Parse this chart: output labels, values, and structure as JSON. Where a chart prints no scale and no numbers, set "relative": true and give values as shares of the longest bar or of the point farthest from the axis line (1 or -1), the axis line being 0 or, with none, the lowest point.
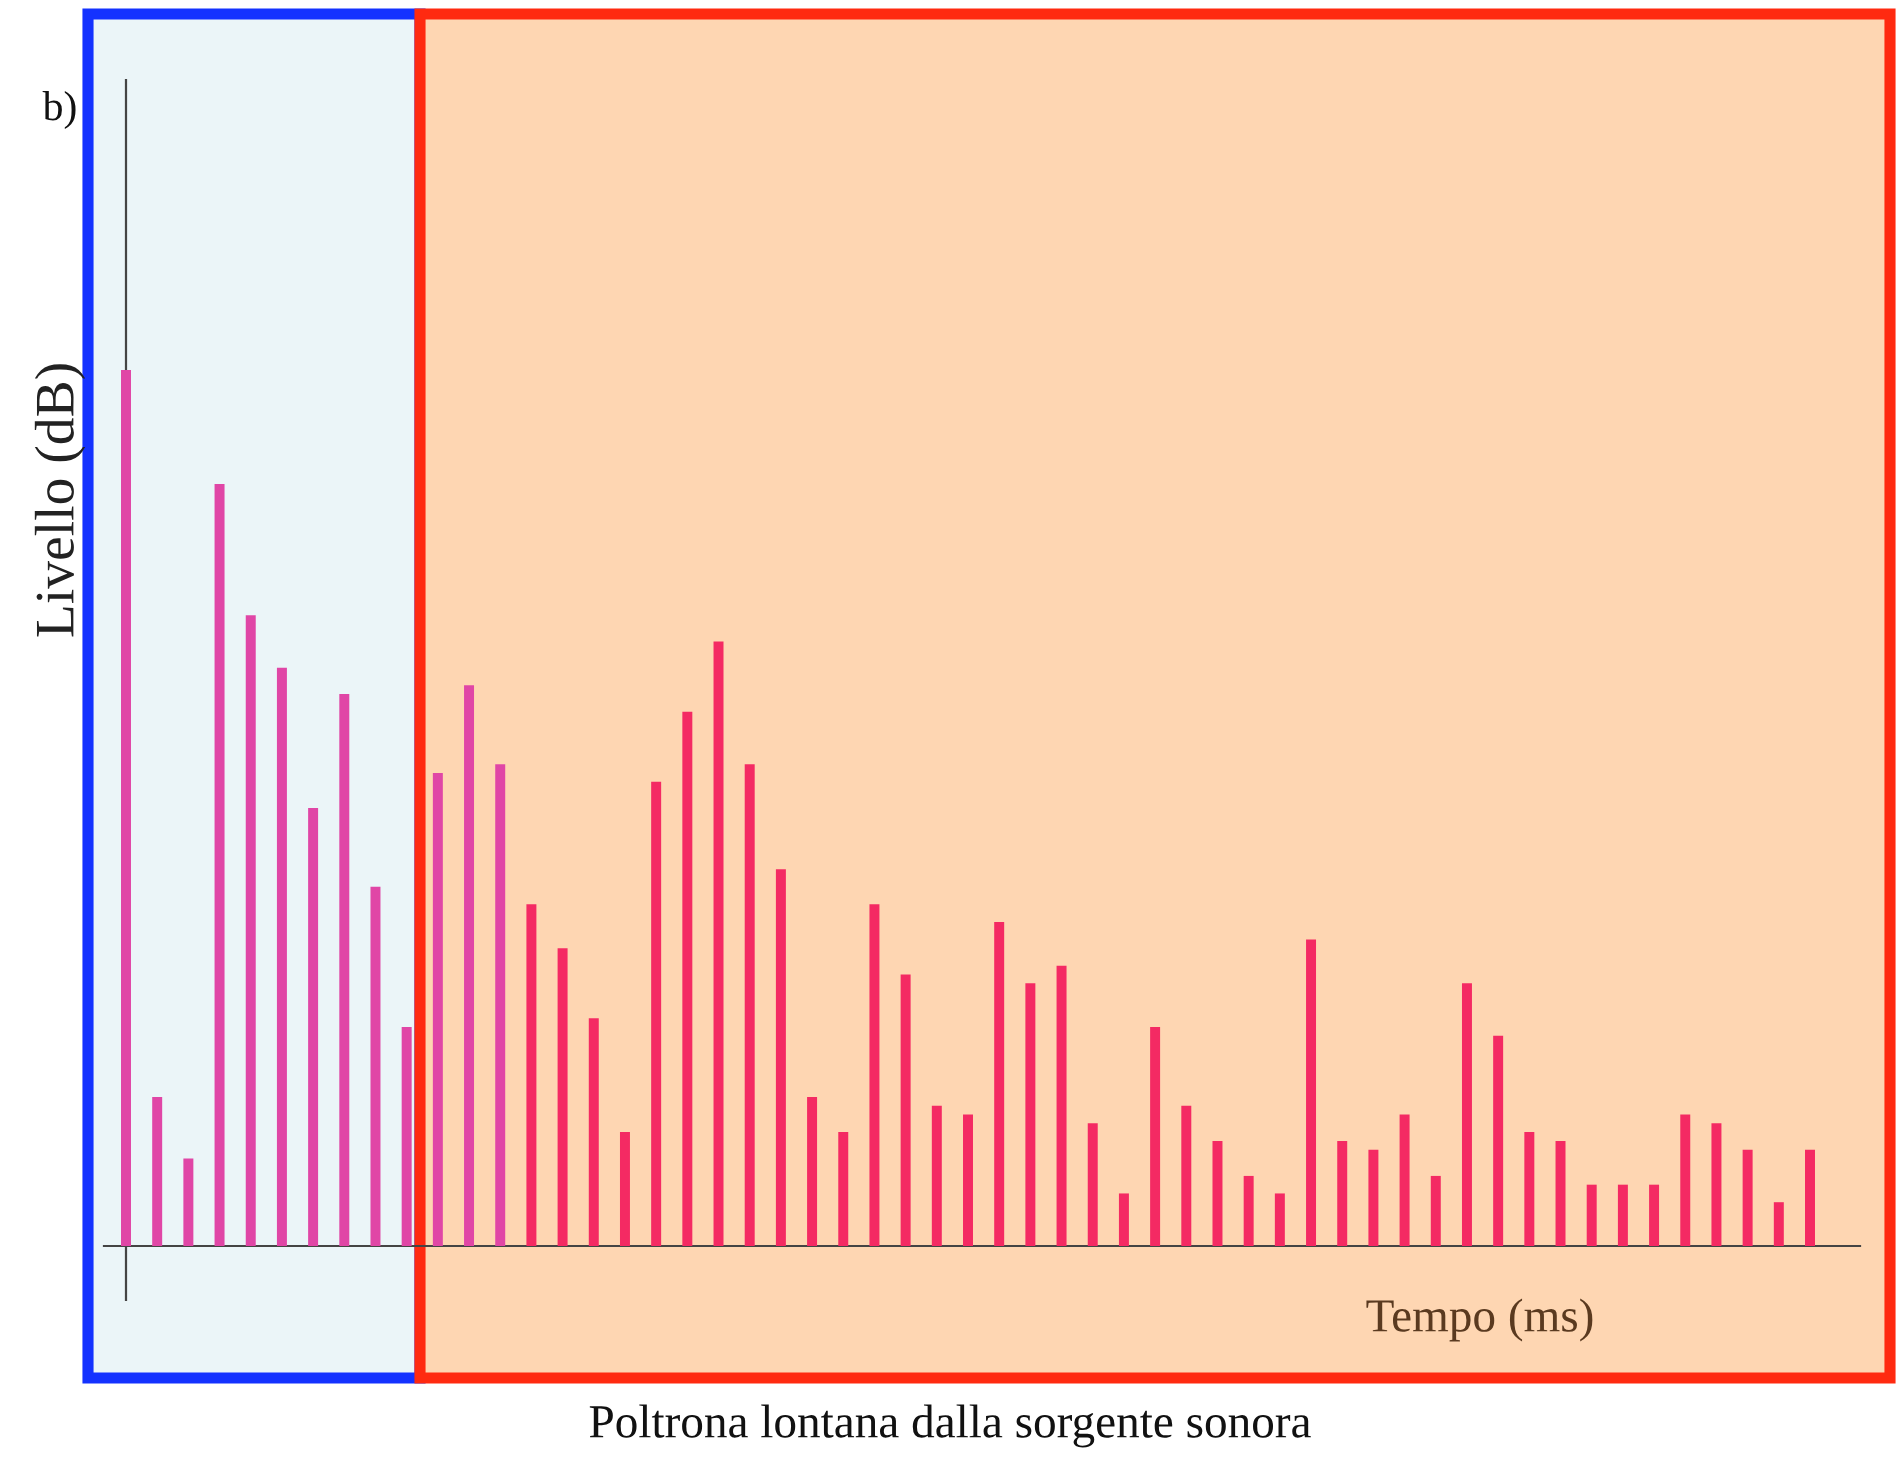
{
  "chart_data": {
    "type": "bar",
    "relative": true,
    "ylabel": "Livello (dB)",
    "xlabel": "Tempo (ms)",
    "annotations": [
      "b)",
      "Poltrona lontana dalla sorgente sonora"
    ],
    "categories": [
      null,
      null,
      null,
      null,
      null,
      null,
      null,
      null,
      null,
      null,
      null,
      null,
      null,
      null,
      null,
      null,
      null,
      null,
      null,
      null,
      null,
      null,
      null,
      null,
      null,
      null,
      null,
      null,
      null,
      null,
      null,
      null,
      null,
      null,
      null,
      null,
      null,
      null,
      null,
      null,
      null,
      null,
      null,
      null,
      null,
      null,
      null,
      null,
      null,
      null,
      null,
      null,
      null,
      null,
      null
    ],
    "values": [
      1,
      0.17,
      0.1,
      0.87,
      0.72,
      0.66,
      0.5,
      0.63,
      0.41,
      0.25,
      0.54,
      0.64,
      0.55,
      0.39,
      0.34,
      0.26,
      0.13,
      0.53,
      0.61,
      0.69,
      0.55,
      0.43,
      0.17,
      0.13,
      0.39,
      0.31,
      0.16,
      0.15,
      0.37,
      0.3,
      0.32,
      0.14,
      0.06,
      0.25,
      0.16,
      0.12,
      0.08,
      0.06,
      0.35,
      0.12,
      0.11,
      0.15,
      0.08,
      0.3,
      0.24,
      0.13,
      0.12,
      0.07,
      0.07,
      0.07,
      0.15,
      0.14,
      0.11,
      0.05,
      0.11
    ],
    "colors": [
      "#e046a6",
      "#e046a6",
      "#e046a6",
      "#e046a6",
      "#e046a6",
      "#e046a6",
      "#e046a6",
      "#e046a6",
      "#e046a6",
      "#e046a6",
      "#e046a6",
      "#e046a6",
      "#e046a6",
      "#f42a63",
      "#f42a63",
      "#f42a63",
      "#f42a63",
      "#f42a63",
      "#f42a63",
      "#f42a63",
      "#f42a63",
      "#f42a63",
      "#f42a63",
      "#f42a63",
      "#f42a63",
      "#f42a63",
      "#f42a63",
      "#f42a63",
      "#f42a63",
      "#f42a63",
      "#f42a63",
      "#f42a63",
      "#f42a63",
      "#f42a63",
      "#f42a63",
      "#f42a63",
      "#f42a63",
      "#f42a63",
      "#f42a63",
      "#f42a63",
      "#f42a63",
      "#f42a63",
      "#f42a63",
      "#f42a63",
      "#f42a63",
      "#f42a63",
      "#f42a63",
      "#f42a63",
      "#f42a63",
      "#f42a63",
      "#f42a63",
      "#f42a63",
      "#f42a63",
      "#f42a63",
      "#f42a63"
    ],
    "grid": false,
    "legend": false
  }
}
